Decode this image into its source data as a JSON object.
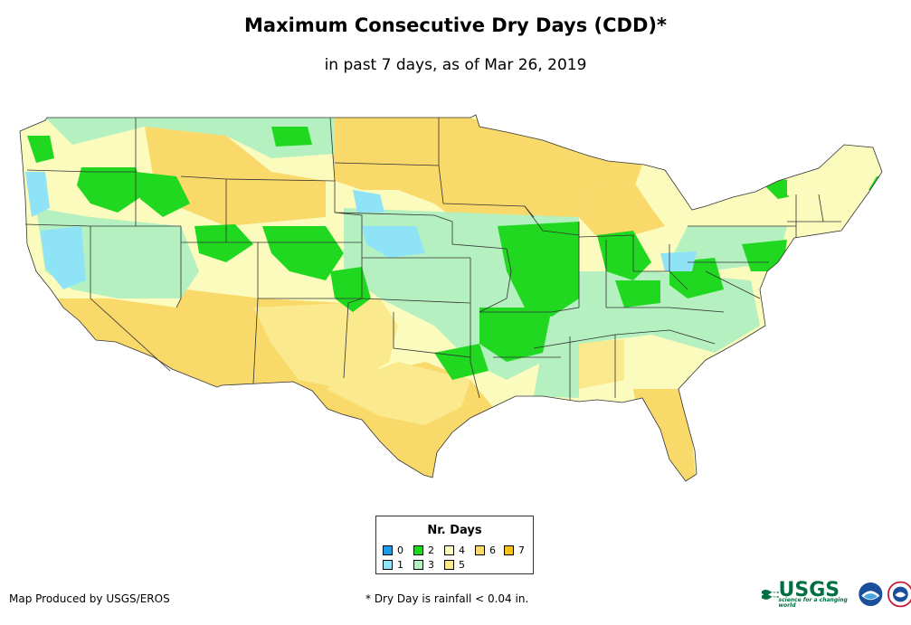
{
  "map": {
    "title": "Maximum Consecutive Dry Days (CDD)*",
    "subtitle": "in past 7 days, as of Mar 26, 2019"
  },
  "legend": {
    "title": "Nr. Days",
    "items": [
      {
        "label": "0",
        "color": "#1e9be6"
      },
      {
        "label": "1",
        "color": "#8fe3f7"
      },
      {
        "label": "2",
        "color": "#1fd81f"
      },
      {
        "label": "3",
        "color": "#b4f0c0"
      },
      {
        "label": "4",
        "color": "#fbfbbe"
      },
      {
        "label": "5",
        "color": "#fbe98e"
      },
      {
        "label": "6",
        "color": "#f9d96a"
      },
      {
        "label": "7",
        "color": "#f7c21a"
      }
    ]
  },
  "footer": {
    "credit": "Map Produced by USGS/EROS",
    "note": "* Dry Day is rainfall < 0.04 in.",
    "usgs_logo": "USGS",
    "usgs_tagline": "science for a changing world"
  }
}
